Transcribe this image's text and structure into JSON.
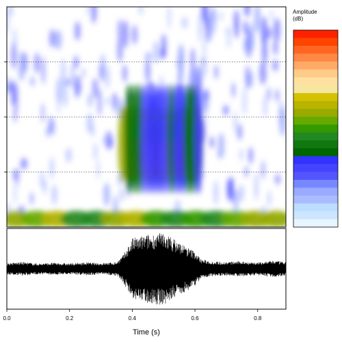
{
  "chart_data": [
    {
      "type": "heatmap",
      "panel": "spectrogram",
      "title": "",
      "xlabel": "",
      "ylabel": "",
      "xlim": [
        0,
        0.89
      ],
      "ylim": [
        0,
        4
      ],
      "grid": "horizontal-dotted",
      "y_gridlines": [
        1,
        2,
        3
      ],
      "regions": [
        {
          "x": [
            0.0,
            0.89
          ],
          "y": [
            0.0,
            0.3
          ],
          "level": 0.55
        },
        {
          "x": [
            0.36,
            0.62
          ],
          "y": [
            0.8,
            2.2
          ],
          "level": 0.6
        },
        {
          "x": [
            0.4,
            0.56
          ],
          "y": [
            0.9,
            1.6
          ],
          "level": 0.85
        },
        {
          "x": [
            0.38,
            0.62
          ],
          "y": [
            0.6,
            2.6
          ],
          "level": 0.35
        },
        {
          "x": [
            0.0,
            0.89
          ],
          "y": [
            0.3,
            4.0
          ],
          "level": 0.1
        }
      ],
      "legend": {
        "title": "Amplitude\n(dB)",
        "placement": "right",
        "colors": [
          "#ff2200",
          "#ff4400",
          "#ff6622",
          "#ff8844",
          "#ffaa66",
          "#ffcc88",
          "#ffe0a0",
          "#f5e6a0",
          "#d4c200",
          "#b8b400",
          "#99aa00",
          "#66aa00",
          "#339900",
          "#228822",
          "#117711",
          "#006600",
          "#3333ff",
          "#4444ff",
          "#5555ff",
          "#7788ff",
          "#99aaff",
          "#aabbff",
          "#bbddff",
          "#cce6ff",
          "#e6f5ff"
        ]
      }
    },
    {
      "type": "line",
      "panel": "oscillogram",
      "title": "",
      "xlabel": "Time (s)",
      "ylabel": "",
      "xlim": [
        0,
        0.89
      ],
      "ylim": [
        -1,
        1
      ],
      "x_ticks": [
        "0.0",
        "0.2",
        "0.4",
        "0.6",
        "0.8"
      ],
      "x_tick_values": [
        0.0,
        0.2,
        0.4,
        0.6,
        0.8
      ],
      "envelope": {
        "x": [
          0.0,
          0.05,
          0.1,
          0.15,
          0.2,
          0.25,
          0.3,
          0.35,
          0.37,
          0.4,
          0.45,
          0.5,
          0.55,
          0.6,
          0.62,
          0.65,
          0.7,
          0.75,
          0.8,
          0.85,
          0.89
        ],
        "amp": [
          0.15,
          0.18,
          0.14,
          0.16,
          0.14,
          0.17,
          0.15,
          0.18,
          0.35,
          0.8,
          0.9,
          0.95,
          0.7,
          0.45,
          0.25,
          0.2,
          0.18,
          0.2,
          0.17,
          0.22,
          0.18
        ]
      }
    }
  ]
}
